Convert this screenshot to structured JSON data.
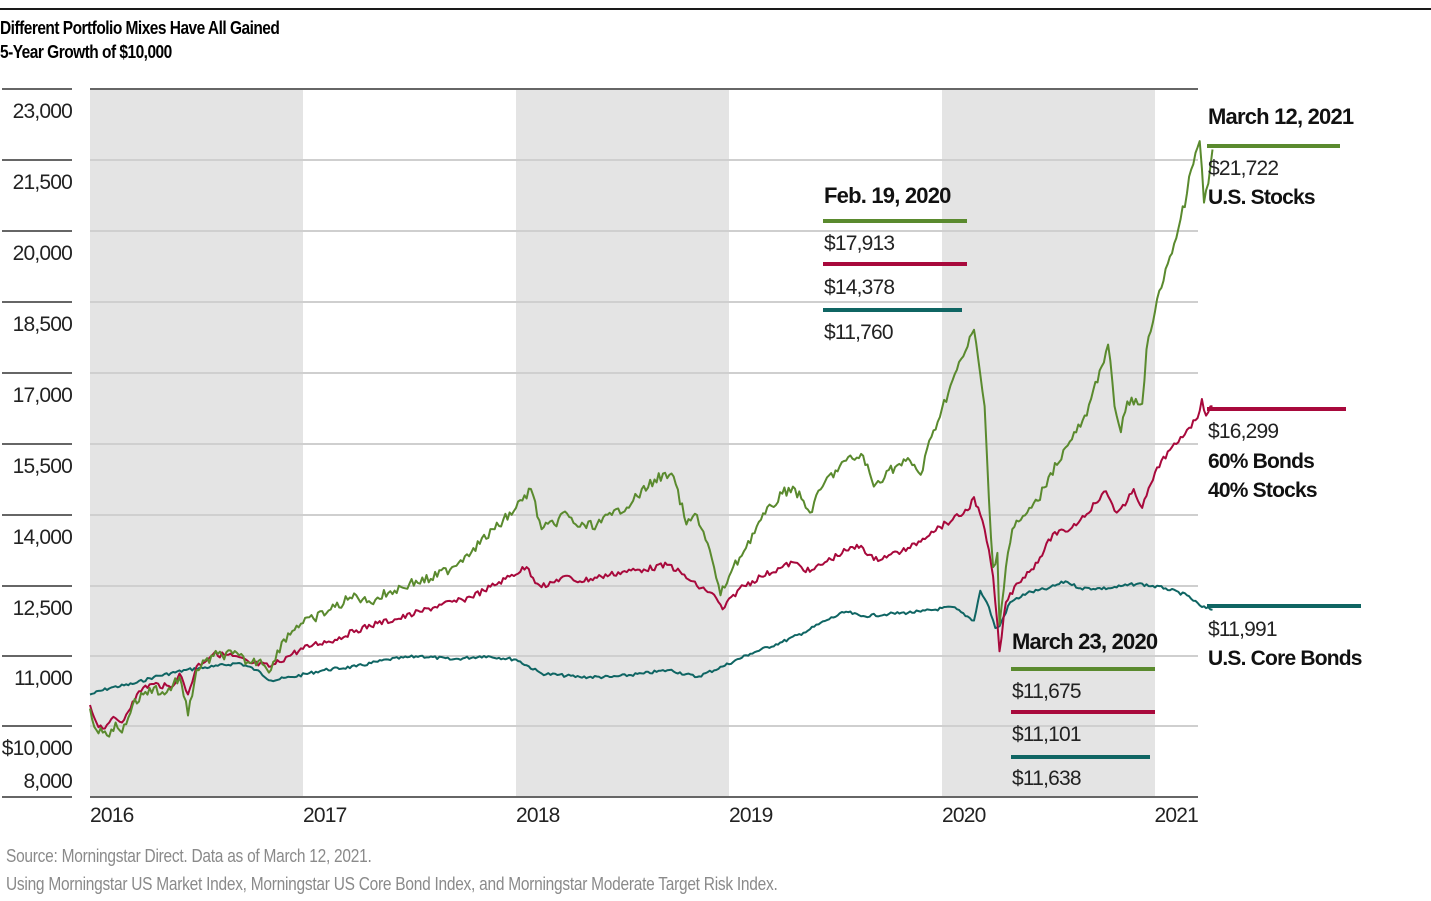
{
  "title": "Different Portfolio Mixes Have All Gained",
  "subtitle": "5-Year Growth of $10,000",
  "footer": {
    "source": "Source: Morningstar Direct.  Data as of March 12, 2021.",
    "note": "Using Morningstar US Market Index, Morningstar US Core Bond Index, and Morningstar Moderate Target Risk Index."
  },
  "colors": {
    "stocks": "#5a8a2e",
    "balanced": "#a8093c",
    "bonds": "#0f6563",
    "shade": "#e4e4e4",
    "grid": "#cfcfcf",
    "axis": "#666666"
  },
  "chart_data": {
    "type": "line",
    "title": "Different Portfolio Mixes Have All Gained",
    "subtitle": "5-Year Growth of $10,000",
    "xlabel": "",
    "ylabel": "",
    "x_ticks": [
      "2016",
      "2017",
      "2018",
      "2019",
      "2020",
      "2021"
    ],
    "x_tick_values": [
      2016,
      2017,
      2018,
      2019,
      2020,
      2021
    ],
    "xlim": [
      2016,
      2021.2
    ],
    "y_ticks": [
      "23,000",
      "21,500",
      "20,000",
      "18,500",
      "17,000",
      "15,500",
      "14,000",
      "12,500",
      "11,000",
      "$10,000",
      "8,000"
    ],
    "y_tick_values": [
      23000,
      21500,
      20000,
      18500,
      17000,
      15500,
      14000,
      12500,
      11000,
      10000,
      8000
    ],
    "shaded_years": [
      2016,
      2018,
      2020
    ],
    "grid": true,
    "series": [
      {
        "name": "U.S. Stocks",
        "color_key": "stocks",
        "points": [
          [
            2016.0,
            10250
          ],
          [
            2016.03,
            9850
          ],
          [
            2016.06,
            9750
          ],
          [
            2016.09,
            9600
          ],
          [
            2016.12,
            10050
          ],
          [
            2016.15,
            9750
          ],
          [
            2016.2,
            10300
          ],
          [
            2016.25,
            10450
          ],
          [
            2016.3,
            10550
          ],
          [
            2016.35,
            10450
          ],
          [
            2016.42,
            10700
          ],
          [
            2016.46,
            10150
          ],
          [
            2016.5,
            10800
          ],
          [
            2016.58,
            11000
          ],
          [
            2016.67,
            11050
          ],
          [
            2016.75,
            10900
          ],
          [
            2016.8,
            10950
          ],
          [
            2016.85,
            10800
          ],
          [
            2016.9,
            11300
          ],
          [
            2016.97,
            11650
          ],
          [
            2017.05,
            11800
          ],
          [
            2017.15,
            12050
          ],
          [
            2017.25,
            12300
          ],
          [
            2017.3,
            12150
          ],
          [
            2017.4,
            12350
          ],
          [
            2017.5,
            12550
          ],
          [
            2017.6,
            12650
          ],
          [
            2017.7,
            12900
          ],
          [
            2017.8,
            13300
          ],
          [
            2017.9,
            13700
          ],
          [
            2018.0,
            14150
          ],
          [
            2018.07,
            14550
          ],
          [
            2018.12,
            13700
          ],
          [
            2018.18,
            13800
          ],
          [
            2018.22,
            14050
          ],
          [
            2018.3,
            13750
          ],
          [
            2018.38,
            13800
          ],
          [
            2018.45,
            14000
          ],
          [
            2018.55,
            14300
          ],
          [
            2018.65,
            14750
          ],
          [
            2018.72,
            14850
          ],
          [
            2018.75,
            14650
          ],
          [
            2018.8,
            13800
          ],
          [
            2018.85,
            14000
          ],
          [
            2018.9,
            13400
          ],
          [
            2018.96,
            12300
          ],
          [
            2019.0,
            12700
          ],
          [
            2019.05,
            13100
          ],
          [
            2019.15,
            13900
          ],
          [
            2019.25,
            14450
          ],
          [
            2019.3,
            14600
          ],
          [
            2019.38,
            14050
          ],
          [
            2019.45,
            14700
          ],
          [
            2019.55,
            15150
          ],
          [
            2019.63,
            15250
          ],
          [
            2019.68,
            14600
          ],
          [
            2019.75,
            14950
          ],
          [
            2019.85,
            15150
          ],
          [
            2019.9,
            14850
          ],
          [
            2019.95,
            15650
          ],
          [
            2020.0,
            16250
          ],
          [
            2020.05,
            16850
          ],
          [
            2020.1,
            17350
          ],
          [
            2020.15,
            17913
          ],
          [
            2020.2,
            16300
          ],
          [
            2020.22,
            14350
          ],
          [
            2020.24,
            12900
          ],
          [
            2020.26,
            13200
          ],
          [
            2020.27,
            11675
          ],
          [
            2020.3,
            12900
          ],
          [
            2020.33,
            13700
          ],
          [
            2020.4,
            14050
          ],
          [
            2020.45,
            14300
          ],
          [
            2020.5,
            14800
          ],
          [
            2020.6,
            15550
          ],
          [
            2020.68,
            16100
          ],
          [
            2020.74,
            17050
          ],
          [
            2020.78,
            17600
          ],
          [
            2020.81,
            16300
          ],
          [
            2020.84,
            15750
          ],
          [
            2020.87,
            16400
          ],
          [
            2020.94,
            16350
          ],
          [
            2020.96,
            17500
          ],
          [
            2021.0,
            18300
          ],
          [
            2021.05,
            19200
          ],
          [
            2021.1,
            19850
          ],
          [
            2021.15,
            20800
          ],
          [
            2021.17,
            21300
          ],
          [
            2021.19,
            21650
          ],
          [
            2021.21,
            21900
          ],
          [
            2021.23,
            20600
          ],
          [
            2021.25,
            21000
          ],
          [
            2021.27,
            21722
          ]
        ]
      },
      {
        "name": "60% Bonds 40% Stocks",
        "color_key": "balanced",
        "points": [
          [
            2016.0,
            10300
          ],
          [
            2016.03,
            10050
          ],
          [
            2016.06,
            9900
          ],
          [
            2016.1,
            10100
          ],
          [
            2016.15,
            10050
          ],
          [
            2016.2,
            10350
          ],
          [
            2016.25,
            10550
          ],
          [
            2016.3,
            10600
          ],
          [
            2016.38,
            10550
          ],
          [
            2016.42,
            10750
          ],
          [
            2016.46,
            10450
          ],
          [
            2016.5,
            10850
          ],
          [
            2016.58,
            11050
          ],
          [
            2016.67,
            11000
          ],
          [
            2016.75,
            10900
          ],
          [
            2016.85,
            10850
          ],
          [
            2016.95,
            11050
          ],
          [
            2017.05,
            11250
          ],
          [
            2017.15,
            11350
          ],
          [
            2017.25,
            11550
          ],
          [
            2017.35,
            11700
          ],
          [
            2017.45,
            11800
          ],
          [
            2017.55,
            11950
          ],
          [
            2017.65,
            12100
          ],
          [
            2017.75,
            12200
          ],
          [
            2017.85,
            12400
          ],
          [
            2017.95,
            12650
          ],
          [
            2018.05,
            12900
          ],
          [
            2018.1,
            12550
          ],
          [
            2018.15,
            12500
          ],
          [
            2018.22,
            12700
          ],
          [
            2018.3,
            12600
          ],
          [
            2018.4,
            12700
          ],
          [
            2018.5,
            12800
          ],
          [
            2018.6,
            12850
          ],
          [
            2018.72,
            12950
          ],
          [
            2018.78,
            12750
          ],
          [
            2018.85,
            12500
          ],
          [
            2018.92,
            12350
          ],
          [
            2018.97,
            12000
          ],
          [
            2019.05,
            12450
          ],
          [
            2019.15,
            12700
          ],
          [
            2019.25,
            12900
          ],
          [
            2019.3,
            13000
          ],
          [
            2019.38,
            12800
          ],
          [
            2019.45,
            13000
          ],
          [
            2019.55,
            13250
          ],
          [
            2019.62,
            13350
          ],
          [
            2019.68,
            13050
          ],
          [
            2019.75,
            13150
          ],
          [
            2019.85,
            13300
          ],
          [
            2019.95,
            13650
          ],
          [
            2020.05,
            13900
          ],
          [
            2020.12,
            14100
          ],
          [
            2020.15,
            14378
          ],
          [
            2020.2,
            13700
          ],
          [
            2020.24,
            12700
          ],
          [
            2020.27,
            11101
          ],
          [
            2020.3,
            12150
          ],
          [
            2020.35,
            12550
          ],
          [
            2020.42,
            12850
          ],
          [
            2020.48,
            13250
          ],
          [
            2020.52,
            13600
          ],
          [
            2020.58,
            13650
          ],
          [
            2020.65,
            13900
          ],
          [
            2020.72,
            14250
          ],
          [
            2020.77,
            14500
          ],
          [
            2020.82,
            14050
          ],
          [
            2020.86,
            14200
          ],
          [
            2020.9,
            14550
          ],
          [
            2020.94,
            14150
          ],
          [
            2020.98,
            14650
          ],
          [
            2021.03,
            15150
          ],
          [
            2021.1,
            15500
          ],
          [
            2021.15,
            15800
          ],
          [
            2021.2,
            16050
          ],
          [
            2021.22,
            16450
          ],
          [
            2021.24,
            16100
          ],
          [
            2021.27,
            16299
          ]
        ]
      },
      {
        "name": "U.S. Core Bonds",
        "color_key": "bonds",
        "points": [
          [
            2016.0,
            10450
          ],
          [
            2016.1,
            10550
          ],
          [
            2016.2,
            10600
          ],
          [
            2016.3,
            10700
          ],
          [
            2016.45,
            10800
          ],
          [
            2016.58,
            10850
          ],
          [
            2016.7,
            10900
          ],
          [
            2016.78,
            10800
          ],
          [
            2016.85,
            10650
          ],
          [
            2016.95,
            10700
          ],
          [
            2017.1,
            10800
          ],
          [
            2017.25,
            10850
          ],
          [
            2017.4,
            10950
          ],
          [
            2017.55,
            11000
          ],
          [
            2017.7,
            10950
          ],
          [
            2017.85,
            11000
          ],
          [
            2018.0,
            10950
          ],
          [
            2018.12,
            10750
          ],
          [
            2018.3,
            10700
          ],
          [
            2018.45,
            10700
          ],
          [
            2018.6,
            10750
          ],
          [
            2018.72,
            10800
          ],
          [
            2018.85,
            10700
          ],
          [
            2018.97,
            10850
          ],
          [
            2019.1,
            11050
          ],
          [
            2019.25,
            11300
          ],
          [
            2019.35,
            11500
          ],
          [
            2019.45,
            11750
          ],
          [
            2019.55,
            11950
          ],
          [
            2019.62,
            11850
          ],
          [
            2019.75,
            11900
          ],
          [
            2019.9,
            11950
          ],
          [
            2020.05,
            12050
          ],
          [
            2020.15,
            11760
          ],
          [
            2020.18,
            12400
          ],
          [
            2020.22,
            12050
          ],
          [
            2020.25,
            11600
          ],
          [
            2020.27,
            11638
          ],
          [
            2020.32,
            12150
          ],
          [
            2020.4,
            12350
          ],
          [
            2020.5,
            12450
          ],
          [
            2020.58,
            12600
          ],
          [
            2020.65,
            12450
          ],
          [
            2020.78,
            12450
          ],
          [
            2020.92,
            12550
          ],
          [
            2021.05,
            12450
          ],
          [
            2021.15,
            12300
          ],
          [
            2021.22,
            12050
          ],
          [
            2021.27,
            11991
          ]
        ]
      }
    ],
    "annotations": [
      {
        "date": "Feb. 19, 2020",
        "values": [
          "$17,913",
          "$14,378",
          "$11,760"
        ]
      },
      {
        "date": "March 23, 2020",
        "values": [
          "$11,675",
          "$11,101",
          "$11,638"
        ]
      },
      {
        "date": "March 12, 2021",
        "values": [
          "$21,722",
          "$16,299",
          "$11,991"
        ],
        "labels": [
          "U.S. Stocks",
          "60% Bonds",
          "40% Stocks",
          "U.S. Core Bonds"
        ]
      }
    ]
  }
}
